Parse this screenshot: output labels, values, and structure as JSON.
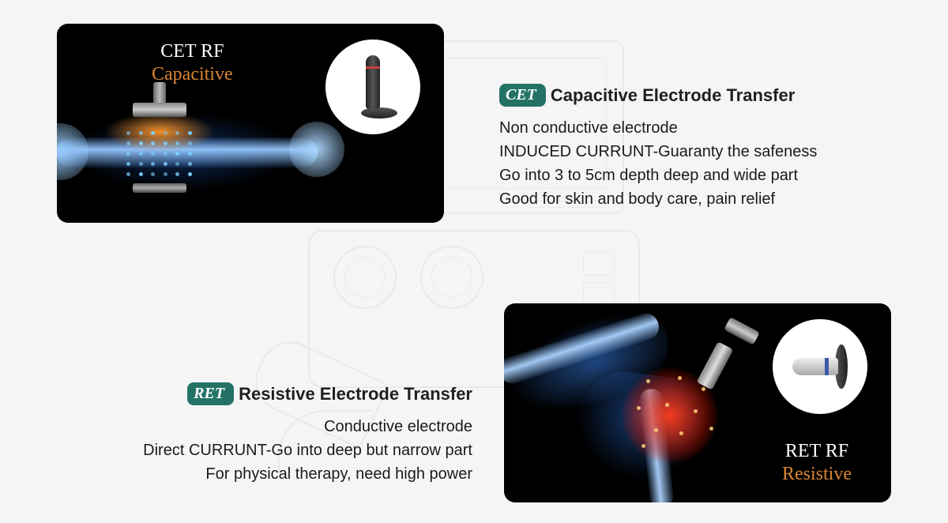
{
  "colors": {
    "badge_bg": "#247266",
    "accent_cet": "#d98532",
    "accent_ret": "#d98532",
    "text_white": "#ffffff"
  },
  "cet": {
    "illus_line1": "CET RF",
    "illus_line2": "Capacitive",
    "badge": "CET",
    "heading": "Capacitive Electrode Transfer",
    "lines": [
      "Non conductive electrode",
      "INDUCED CURRUNT-Guaranty the safeness",
      "Go into 3 to 5cm depth deep and wide part",
      "Good for skin and body care, pain relief"
    ]
  },
  "ret": {
    "illus_line1": "RET RF",
    "illus_line2": "Resistive",
    "badge": "RET",
    "heading": "Resistive Electrode Transfer",
    "lines": [
      "Conductive electrode",
      "Direct CURRUNT-Go into deep but narrow part",
      "For physical therapy, need high power"
    ]
  }
}
